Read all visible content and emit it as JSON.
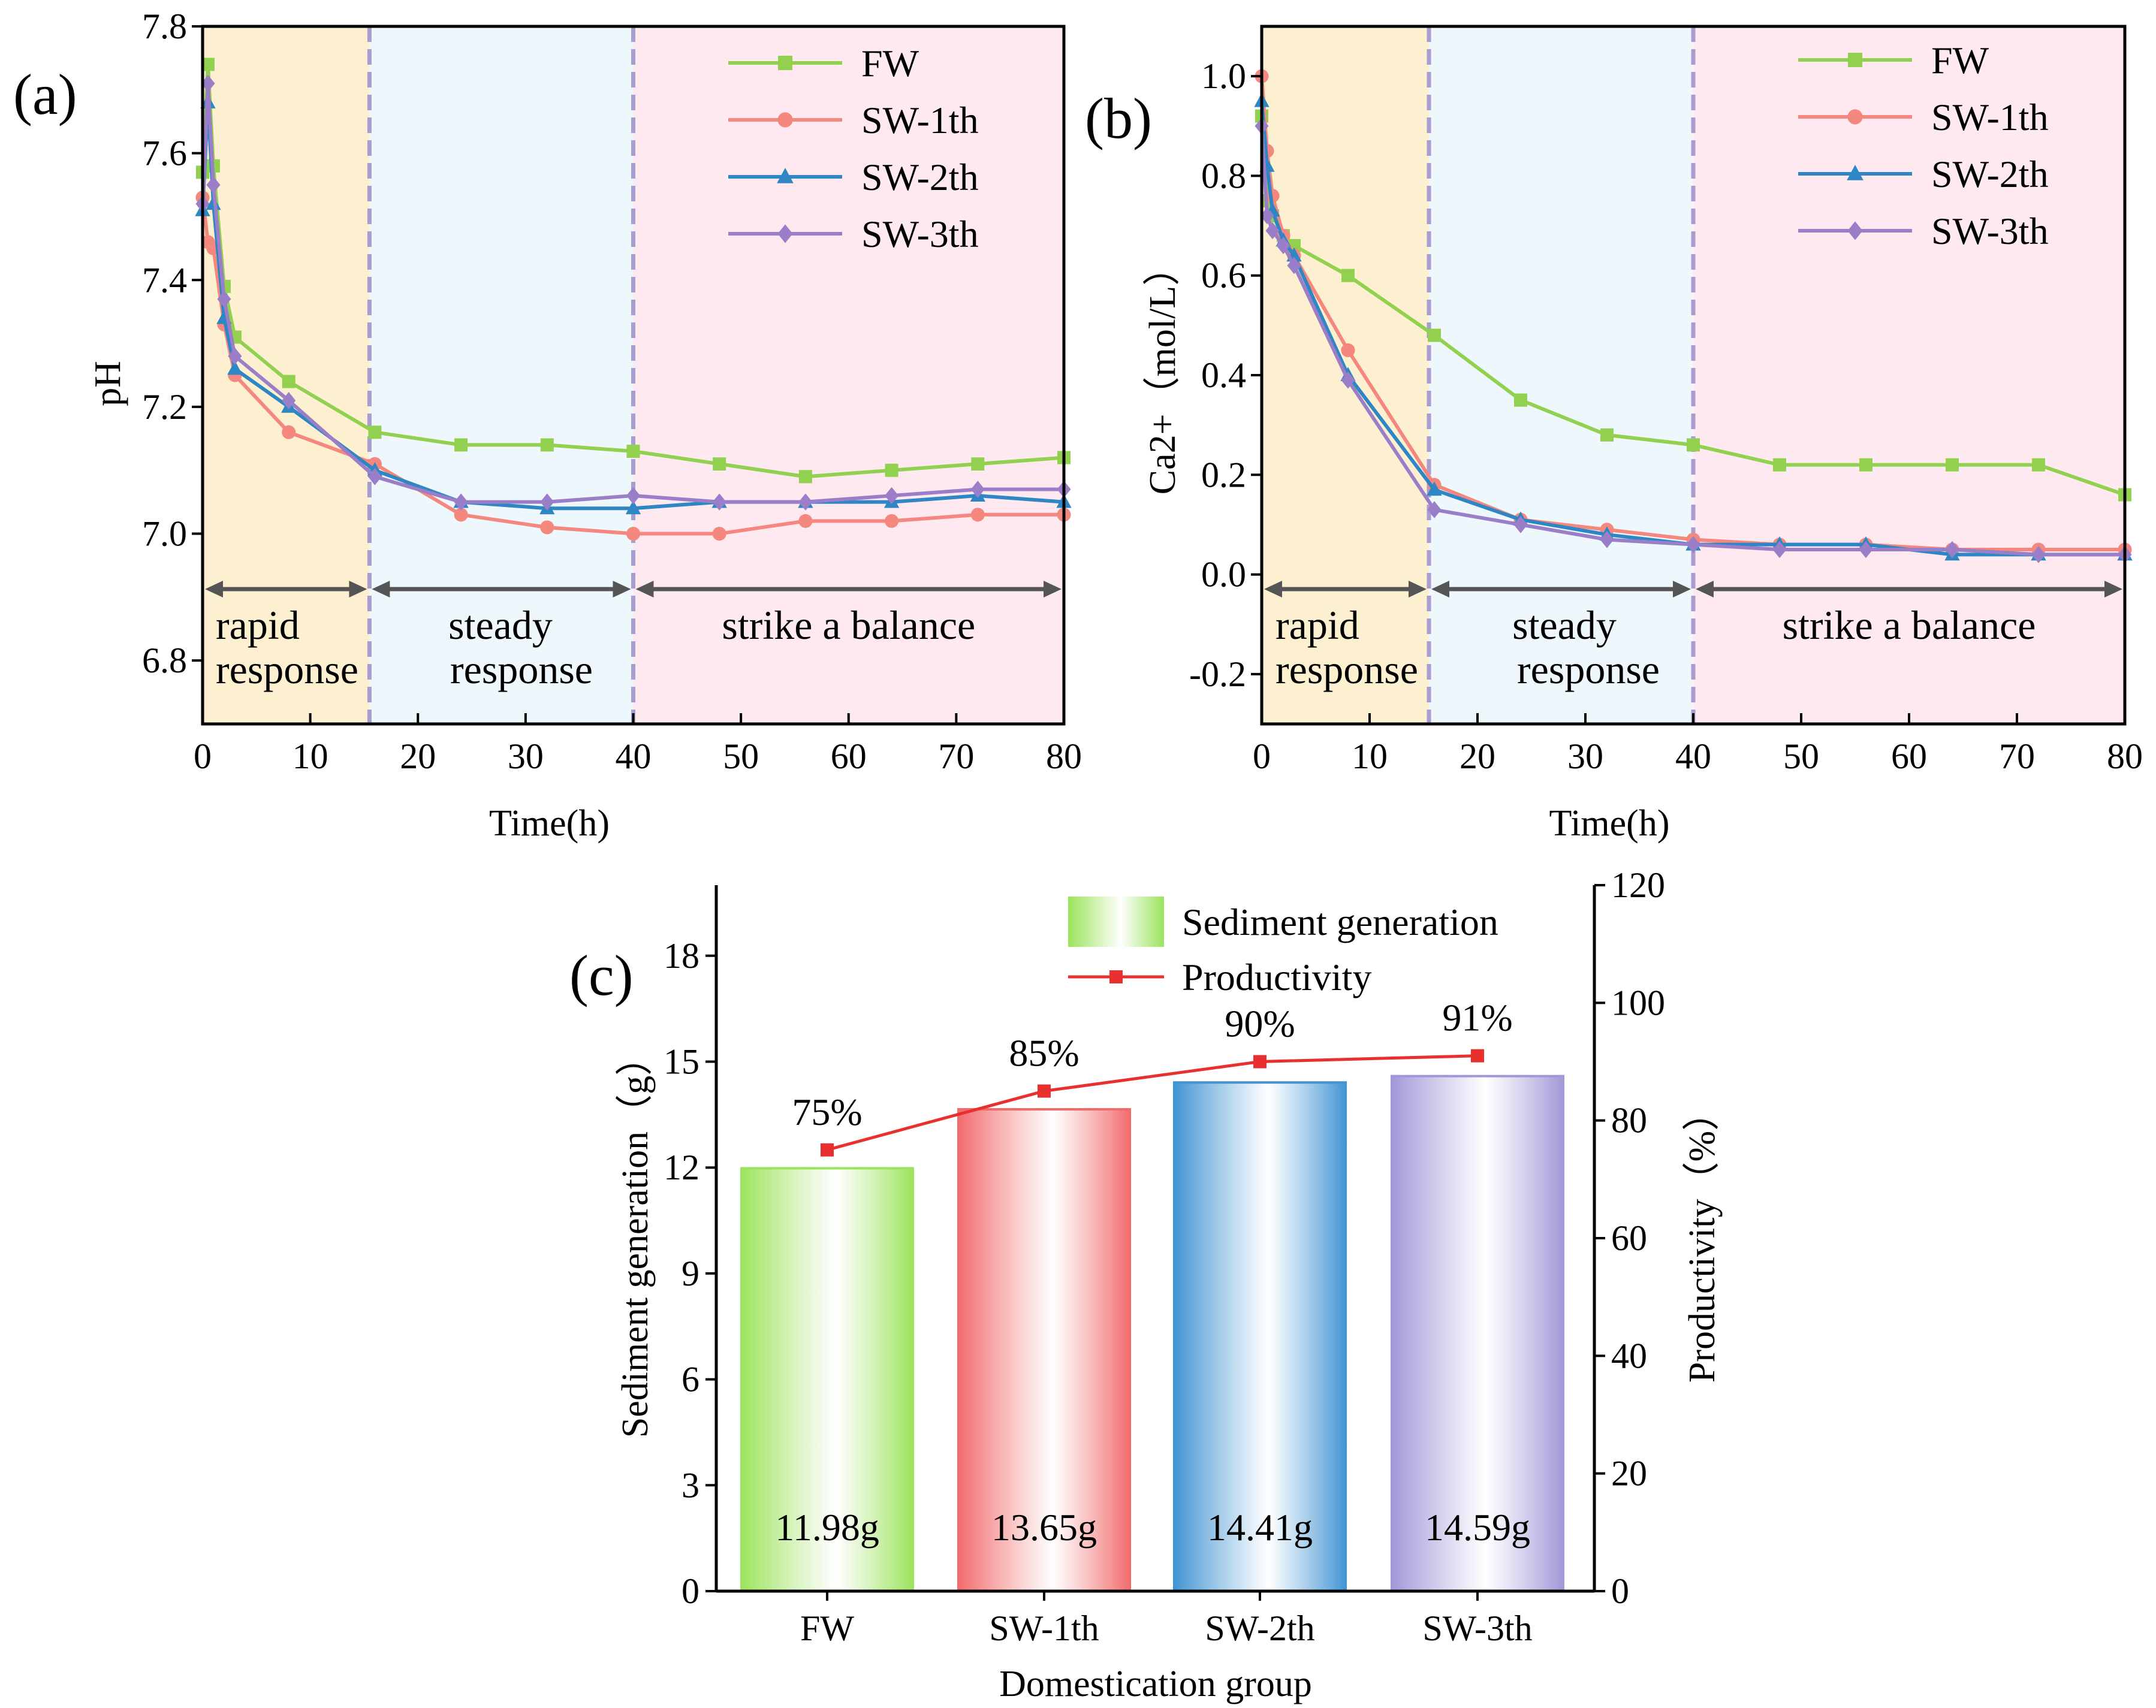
{
  "chart_data": [
    {
      "panel": "(a)",
      "type": "line",
      "xlabel": "Time(h)",
      "ylabel": "pH",
      "xlim": [
        0,
        80
      ],
      "ylim": [
        6.7,
        7.8
      ],
      "xticks": [
        "0",
        "10",
        "20",
        "30",
        "40",
        "50",
        "60",
        "70",
        "80"
      ],
      "yticks": [
        "6.8",
        "7.0",
        "7.2",
        "7.4",
        "7.6",
        "7.8"
      ],
      "legend_position": "top-right",
      "phase_boundaries": [
        15.5,
        40
      ],
      "phases": [
        {
          "label_line1": "rapid",
          "label_line2": "response",
          "color": "#fdf0d0"
        },
        {
          "label_line1": "steady",
          "label_line2": "response",
          "color": "#eef7fb"
        },
        {
          "label_line1": "strike a balance",
          "label_line2": "",
          "color": "#fde9ef"
        }
      ],
      "series": [
        {
          "name": "FW",
          "color": "#92d050",
          "marker": "square",
          "x": [
            0,
            0.5,
            1,
            2,
            3,
            8,
            16,
            24,
            32,
            40,
            48,
            56,
            64,
            72,
            80
          ],
          "y": [
            7.57,
            7.74,
            7.58,
            7.39,
            7.31,
            7.24,
            7.16,
            7.14,
            7.14,
            7.13,
            7.11,
            7.09,
            7.1,
            7.11,
            7.12
          ]
        },
        {
          "name": "SW-1th",
          "color": "#f4877e",
          "marker": "circle",
          "x": [
            0,
            0.5,
            1,
            2,
            3,
            8,
            16,
            24,
            32,
            40,
            48,
            56,
            64,
            72,
            80
          ],
          "y": [
            7.53,
            7.46,
            7.45,
            7.33,
            7.25,
            7.16,
            7.11,
            7.03,
            7.01,
            7.0,
            7.0,
            7.02,
            7.02,
            7.03,
            7.03
          ]
        },
        {
          "name": "SW-2th",
          "color": "#2f86c5",
          "marker": "triangle",
          "x": [
            0,
            0.5,
            1,
            2,
            3,
            8,
            16,
            24,
            32,
            40,
            48,
            56,
            64,
            72,
            80
          ],
          "y": [
            7.51,
            7.68,
            7.52,
            7.34,
            7.26,
            7.2,
            7.1,
            7.05,
            7.04,
            7.04,
            7.05,
            7.05,
            7.05,
            7.06,
            7.05
          ]
        },
        {
          "name": "SW-3th",
          "color": "#9b7ec8",
          "marker": "diamond",
          "x": [
            0,
            0.5,
            1,
            2,
            3,
            8,
            16,
            24,
            32,
            40,
            48,
            56,
            64,
            72,
            80
          ],
          "y": [
            7.52,
            7.71,
            7.55,
            7.37,
            7.28,
            7.21,
            7.09,
            7.05,
            7.05,
            7.06,
            7.05,
            7.05,
            7.06,
            7.07,
            7.07
          ]
        }
      ]
    },
    {
      "panel": "(b)",
      "type": "line",
      "xlabel": "Time(h)",
      "ylabel": "Ca2+（mol/L）",
      "xlim": [
        0,
        80
      ],
      "ylim": [
        -0.3,
        1.1
      ],
      "xticks": [
        "0",
        "10",
        "20",
        "30",
        "40",
        "50",
        "60",
        "70",
        "80"
      ],
      "yticks": [
        "-0.2",
        "0.0",
        "0.2",
        "0.4",
        "0.6",
        "0.8",
        "1.0"
      ],
      "legend_position": "top-right",
      "phase_boundaries": [
        15.5,
        40
      ],
      "phases": [
        {
          "label_line1": "rapid",
          "label_line2": "response",
          "color": "#fdf0d0"
        },
        {
          "label_line1": "steady",
          "label_line2": "response",
          "color": "#eef7fb"
        },
        {
          "label_line1": "strike a balance",
          "label_line2": "",
          "color": "#fde9ef"
        }
      ],
      "series": [
        {
          "name": "FW",
          "color": "#92d050",
          "marker": "square",
          "x": [
            0,
            0.5,
            1,
            2,
            3,
            8,
            16,
            24,
            32,
            40,
            48,
            56,
            64,
            72,
            80
          ],
          "y": [
            0.92,
            0.75,
            0.72,
            0.68,
            0.66,
            0.6,
            0.48,
            0.35,
            0.28,
            0.26,
            0.22,
            0.22,
            0.22,
            0.22,
            0.16
          ]
        },
        {
          "name": "SW-1th",
          "color": "#f4877e",
          "marker": "circle",
          "x": [
            0,
            0.5,
            1,
            2,
            3,
            8,
            16,
            24,
            32,
            40,
            48,
            56,
            64,
            72,
            80
          ],
          "y": [
            1.0,
            0.85,
            0.76,
            0.68,
            0.64,
            0.45,
            0.18,
            0.11,
            0.09,
            0.07,
            0.06,
            0.06,
            0.05,
            0.05,
            0.05
          ]
        },
        {
          "name": "SW-2th",
          "color": "#2f86c5",
          "marker": "triangle",
          "x": [
            0,
            0.5,
            1,
            2,
            3,
            8,
            16,
            24,
            32,
            40,
            48,
            56,
            64,
            72,
            80
          ],
          "y": [
            0.95,
            0.82,
            0.73,
            0.67,
            0.64,
            0.4,
            0.17,
            0.11,
            0.08,
            0.06,
            0.06,
            0.06,
            0.04,
            0.04,
            0.04
          ]
        },
        {
          "name": "SW-3th",
          "color": "#9b7ec8",
          "marker": "diamond",
          "x": [
            0,
            0.5,
            1,
            2,
            3,
            8,
            16,
            24,
            32,
            40,
            48,
            56,
            64,
            72,
            80
          ],
          "y": [
            0.9,
            0.72,
            0.69,
            0.66,
            0.62,
            0.39,
            0.13,
            0.1,
            0.07,
            0.06,
            0.05,
            0.05,
            0.05,
            0.04,
            0.04
          ]
        }
      ]
    },
    {
      "panel": "(c)",
      "type": "bar",
      "xlabel": "Domestication group",
      "ylabel": "Sediment generation（g）",
      "y2label": "Productivity（%）",
      "categories": [
        "FW",
        "SW-1th",
        "SW-2th",
        "SW-3th"
      ],
      "ylim": [
        0,
        20
      ],
      "yticks": [
        "0",
        "3",
        "6",
        "9",
        "12",
        "15",
        "18"
      ],
      "y2lim": [
        0,
        120
      ],
      "y2ticks": [
        "0",
        "20",
        "40",
        "60",
        "80",
        "100",
        "120"
      ],
      "legend_position": "top-right",
      "series": [
        {
          "name": "Sediment generation",
          "axis": "left",
          "type": "bar",
          "values": [
            11.98,
            13.65,
            14.41,
            14.59
          ],
          "value_labels": [
            "11.98g",
            "13.65g",
            "14.41g",
            "14.59g"
          ],
          "colors": [
            "#9be35c",
            "#f26a6a",
            "#3f93d3",
            "#a296d8"
          ]
        },
        {
          "name": "Productivity",
          "axis": "right",
          "type": "line",
          "color": "#e8312f",
          "values": [
            75,
            85,
            90,
            91
          ],
          "value_labels": [
            "75%",
            "85%",
            "90%",
            "91%"
          ]
        }
      ]
    }
  ]
}
